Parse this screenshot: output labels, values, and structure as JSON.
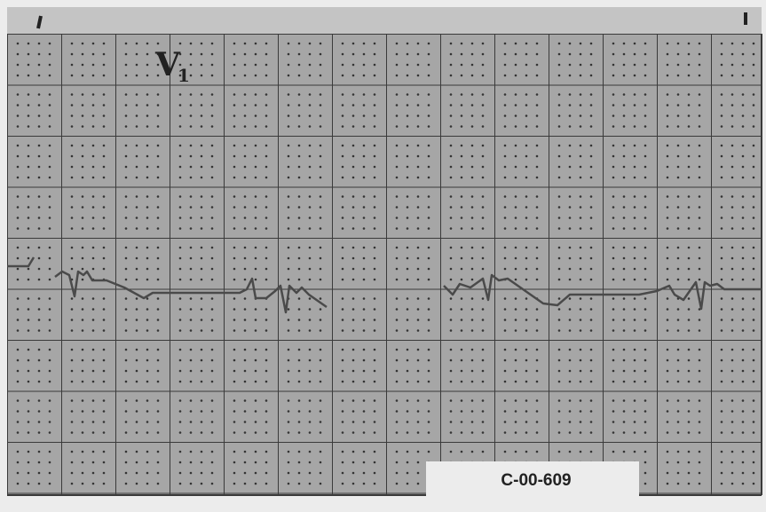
{
  "lead": {
    "letter": "V",
    "subscript": "1"
  },
  "figure_id": "C-00-609"
}
